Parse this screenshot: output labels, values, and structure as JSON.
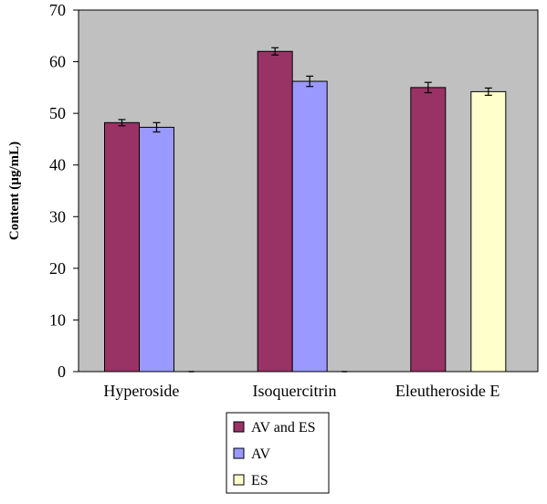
{
  "chart_data": {
    "type": "bar",
    "title": "",
    "xlabel": "",
    "ylabel": "Content (µg/mL)",
    "ylim": [
      0,
      70
    ],
    "yticks": [
      0,
      10,
      20,
      30,
      40,
      50,
      60,
      70
    ],
    "grid": false,
    "legend_position": "bottom-center",
    "plot_background": "#C0C0C0",
    "categories": [
      "Hyperoside",
      "Isoquercitrin",
      "Eleutheroside E"
    ],
    "series": [
      {
        "name": "AV and ES",
        "color": "#993366",
        "values": [
          48.2,
          62.0,
          55.0
        ],
        "errors": [
          0.6,
          0.7,
          1.0
        ]
      },
      {
        "name": "AV",
        "color": "#9999FF",
        "values": [
          47.3,
          56.2,
          null
        ],
        "errors": [
          0.9,
          1.0,
          null
        ]
      },
      {
        "name": "ES",
        "color": "#FFFFCC",
        "values": [
          null,
          null,
          54.2
        ],
        "errors": [
          null,
          null,
          0.7
        ]
      }
    ]
  }
}
